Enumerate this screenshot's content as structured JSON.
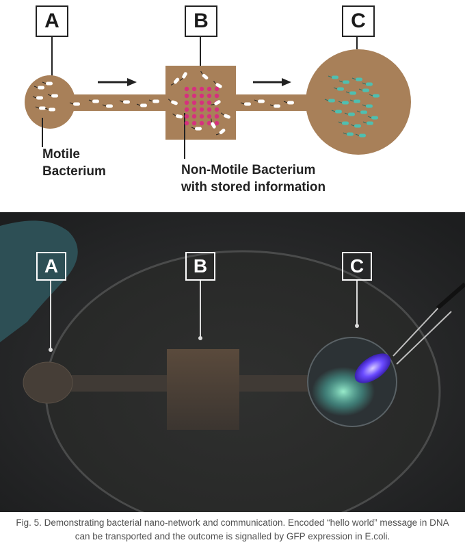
{
  "diagram": {
    "labels": {
      "a": "A",
      "b": "B",
      "c": "C"
    },
    "motile_label": [
      "Motile",
      "Bacterium"
    ],
    "nonmotile_label": [
      "Non-Motile Bacterium",
      "with stored information"
    ]
  },
  "photo": {
    "labels": {
      "a": "A",
      "b": "B",
      "c": "C"
    }
  },
  "caption": {
    "line1": "Fig. 5. Demonstrating bacterial nano-network and communication. Encoded “hello world” message in DNA",
    "line2": "can be transported and the outcome is signalled by GFP expression in E.coli."
  },
  "colors": {
    "channel": "#a88059",
    "dots": "#d6307e",
    "gfp": "#4fbfb0",
    "led": "#6a4bff"
  }
}
